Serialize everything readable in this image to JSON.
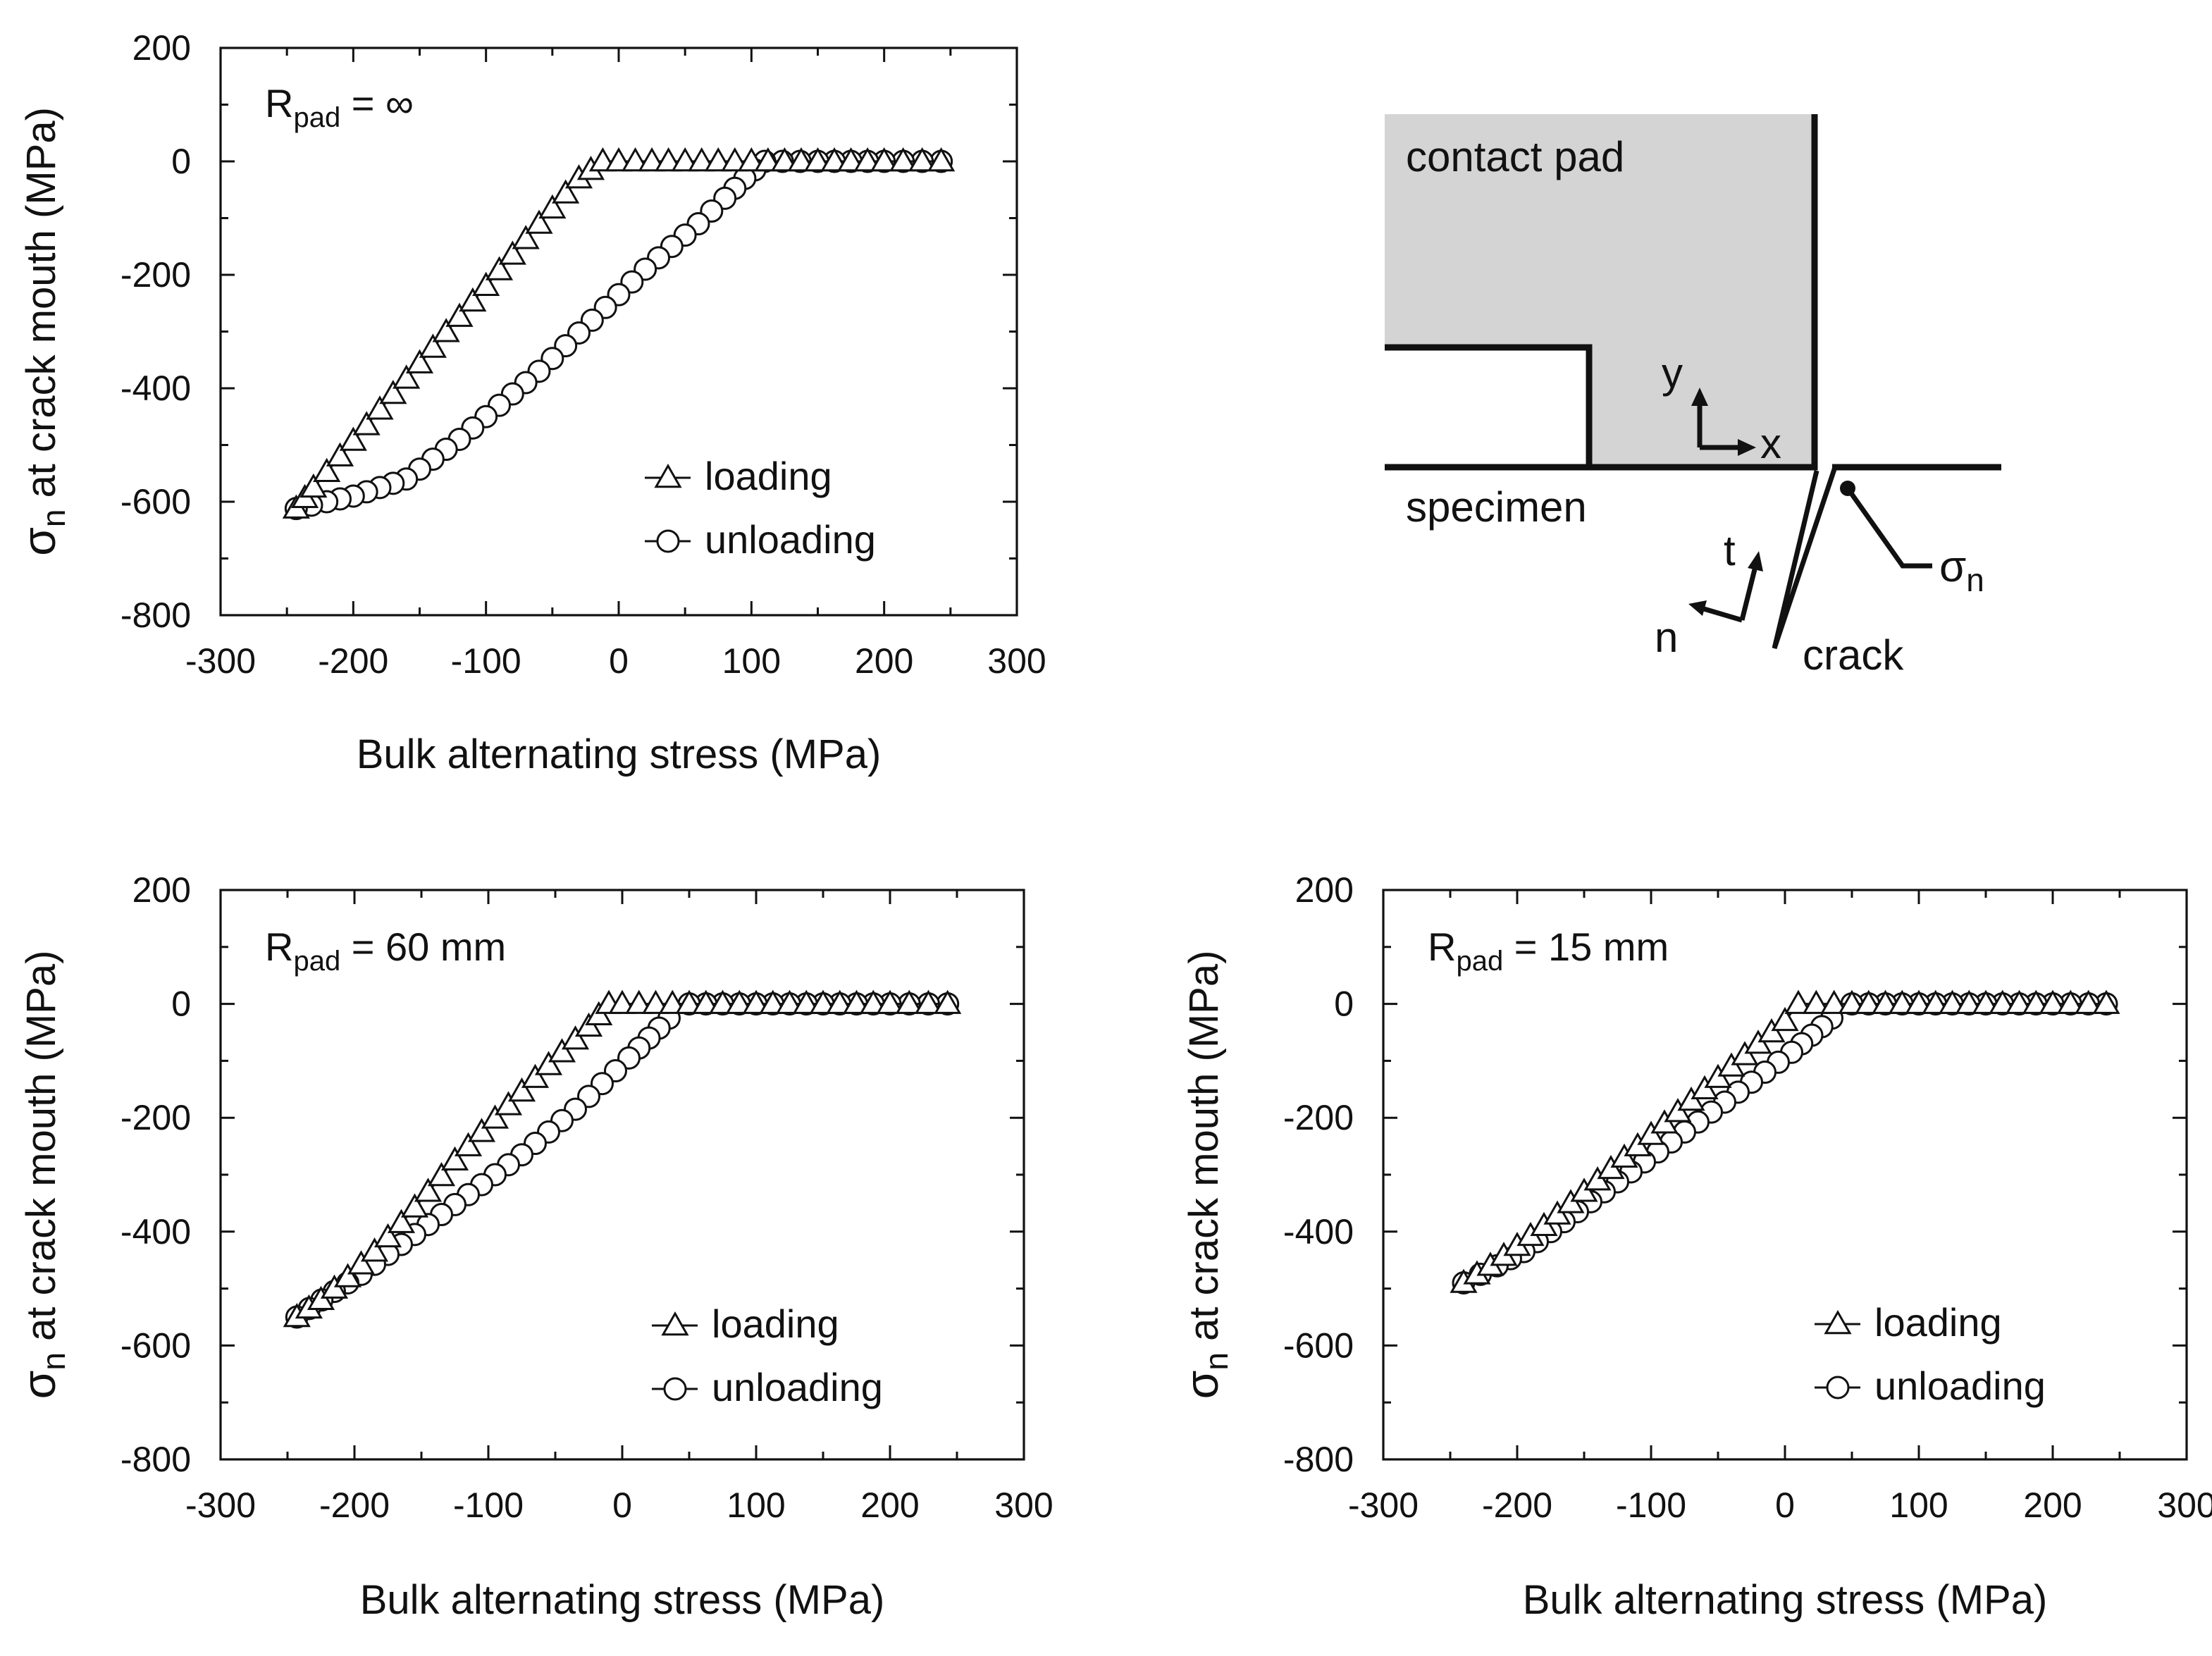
{
  "chart_data": [
    {
      "type": "line",
      "panel_label": {
        "main": "R",
        "sub": "pad",
        "rest": " = ∞"
      },
      "xlabel": "Bulk alternating stress (MPa)",
      "ylabel": {
        "symbol": "σ",
        "sub": "n",
        "rest": " at crack mouth (MPa)"
      },
      "xlim": [
        -300,
        300
      ],
      "ylim": [
        -800,
        200
      ],
      "xticks": [
        -300,
        -200,
        -100,
        0,
        100,
        200,
        300
      ],
      "yticks": [
        200,
        0,
        -200,
        -400,
        -600,
        -800
      ],
      "legend_position": "lower-right",
      "series": [
        {
          "name": "loading",
          "marker": "triangle",
          "x": [
            -243,
            -230,
            -210,
            -190,
            -170,
            -150,
            -130,
            -110,
            -90,
            -70,
            -50,
            -30,
            -12,
            0,
            50,
            100,
            150,
            200,
            243
          ],
          "y": [
            -612,
            -575,
            -520,
            -465,
            -410,
            -356,
            -301,
            -247,
            -192,
            -137,
            -83,
            -30,
            0,
            0,
            0,
            0,
            0,
            0,
            0
          ]
        },
        {
          "name": "unloading",
          "marker": "circle",
          "x": [
            243,
            200,
            150,
            110,
            95,
            80,
            60,
            40,
            20,
            0,
            -20,
            -40,
            -60,
            -80,
            -100,
            -120,
            -140,
            -160,
            -180,
            -200,
            -220,
            -243
          ],
          "y": [
            0,
            0,
            0,
            0,
            -30,
            -65,
            -110,
            -150,
            -190,
            -235,
            -280,
            -325,
            -370,
            -410,
            -450,
            -490,
            -525,
            -560,
            -575,
            -590,
            -600,
            -612
          ]
        }
      ]
    },
    {
      "type": "line",
      "panel_label": {
        "main": "R",
        "sub": "pad",
        "rest": " = 60 mm"
      },
      "xlabel": "Bulk alternating stress (MPa)",
      "ylabel": {
        "symbol": "σ",
        "sub": "n",
        "rest": " at crack mouth (MPa)"
      },
      "xlim": [
        -300,
        300
      ],
      "ylim": [
        -800,
        200
      ],
      "xticks": [
        -300,
        -200,
        -100,
        0,
        100,
        200,
        300
      ],
      "yticks": [
        200,
        0,
        -200,
        -400,
        -600,
        -800
      ],
      "legend_position": "lower-right",
      "series": [
        {
          "name": "loading",
          "marker": "triangle",
          "x": [
            -243,
            -225,
            -205,
            -185,
            -165,
            -145,
            -125,
            -105,
            -85,
            -65,
            -45,
            -25,
            -10,
            0,
            50,
            100,
            150,
            200,
            243
          ],
          "y": [
            -550,
            -520,
            -480,
            -435,
            -385,
            -330,
            -275,
            -225,
            -178,
            -130,
            -85,
            -40,
            0,
            0,
            0,
            0,
            0,
            0,
            0
          ]
        },
        {
          "name": "unloading",
          "marker": "circle",
          "x": [
            243,
            200,
            150,
            100,
            50,
            35,
            20,
            5,
            -15,
            -35,
            -55,
            -75,
            -95,
            -115,
            -135,
            -155,
            -175,
            -195,
            -215,
            -243
          ],
          "y": [
            0,
            0,
            0,
            0,
            0,
            -25,
            -60,
            -95,
            -140,
            -185,
            -225,
            -265,
            -300,
            -335,
            -370,
            -405,
            -440,
            -475,
            -505,
            -550
          ]
        }
      ]
    },
    {
      "type": "line",
      "panel_label": {
        "main": "R",
        "sub": "pad",
        "rest": " = 15 mm"
      },
      "xlabel": "Bulk alternating stress (MPa)",
      "ylabel": {
        "symbol": "σ",
        "sub": "n",
        "rest": " at crack mouth (MPa)"
      },
      "xlim": [
        -300,
        300
      ],
      "ylim": [
        -800,
        200
      ],
      "xticks": [
        -300,
        -200,
        -100,
        0,
        100,
        200,
        300
      ],
      "yticks": [
        200,
        0,
        -200,
        -400,
        -600,
        -800
      ],
      "legend_position": "lower-right",
      "series": [
        {
          "name": "loading",
          "marker": "triangle",
          "x": [
            -240,
            -220,
            -200,
            -180,
            -160,
            -140,
            -120,
            -100,
            -80,
            -60,
            -40,
            -20,
            0,
            10,
            50,
            100,
            150,
            200,
            240
          ],
          "y": [
            -490,
            -460,
            -425,
            -390,
            -350,
            -310,
            -270,
            -230,
            -190,
            -150,
            -110,
            -70,
            -30,
            0,
            0,
            0,
            0,
            0,
            0
          ]
        },
        {
          "name": "unloading",
          "marker": "circle",
          "x": [
            240,
            200,
            150,
            100,
            50,
            35,
            20,
            5,
            -15,
            -35,
            -55,
            -75,
            -95,
            -115,
            -135,
            -155,
            -175,
            -195,
            -215,
            -240
          ],
          "y": [
            0,
            0,
            0,
            0,
            0,
            -25,
            -55,
            -85,
            -120,
            -155,
            -190,
            -225,
            -260,
            -295,
            -330,
            -365,
            -400,
            -435,
            -460,
            -490
          ]
        }
      ]
    }
  ],
  "diagram": {
    "pad_label": "contact pad",
    "specimen_label": "specimen",
    "crack_label": "crack",
    "axis_y": "y",
    "axis_x": "x",
    "axis_t": "t",
    "axis_n": "n",
    "sigma_symbol": "σ",
    "sigma_sub": "n"
  }
}
